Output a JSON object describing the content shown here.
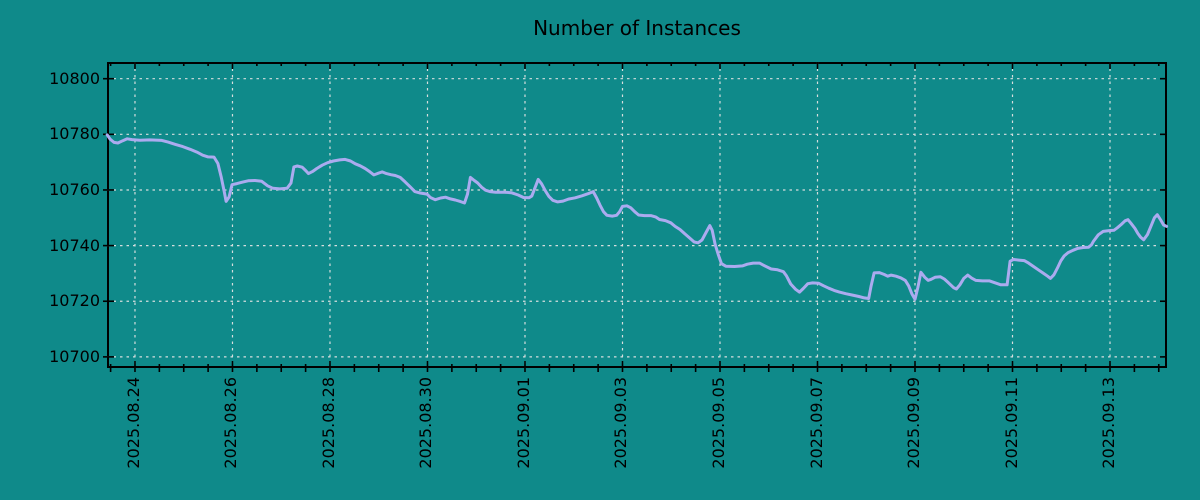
{
  "chart_data": {
    "type": "line",
    "title": "Number of Instances",
    "xlabel": "",
    "ylabel": "",
    "legend": null,
    "grid": true,
    "colors": {
      "background": "#0F8A8A",
      "line": "#ABABEF",
      "grid": "#D6DEDE",
      "axis": "#000000",
      "text": "#000000"
    },
    "ylim": [
      10696,
      10806
    ],
    "xlim_days": [
      -0.574,
      21.169
    ],
    "x_minor_step_days": 0.5,
    "y_ticks": [
      {
        "value": 10700,
        "label": "10700"
      },
      {
        "value": 10720,
        "label": "10720"
      },
      {
        "value": 10740,
        "label": "10740"
      },
      {
        "value": 10760,
        "label": "10760"
      },
      {
        "value": 10780,
        "label": "10780"
      },
      {
        "value": 10800,
        "label": "10800"
      }
    ],
    "x_ticks": [
      {
        "day": 0,
        "label": "2025.08.24"
      },
      {
        "day": 2,
        "label": "2025.08.26"
      },
      {
        "day": 4,
        "label": "2025.08.28"
      },
      {
        "day": 6,
        "label": "2025.08.30"
      },
      {
        "day": 8,
        "label": "2025.09.01"
      },
      {
        "day": 10,
        "label": "2025.09.03"
      },
      {
        "day": 12,
        "label": "2025.09.05"
      },
      {
        "day": 14,
        "label": "2025.09.07"
      },
      {
        "day": 16,
        "label": "2025.09.09"
      },
      {
        "day": 18,
        "label": "2025.09.11"
      },
      {
        "day": 20,
        "label": "2025.09.13"
      }
    ],
    "points": [
      [
        -0.57,
        10779.8
      ],
      [
        -0.51,
        10778.3
      ],
      [
        -0.43,
        10777.1
      ],
      [
        -0.35,
        10776.9
      ],
      [
        -0.25,
        10777.7
      ],
      [
        -0.16,
        10778.4
      ],
      [
        -0.06,
        10778.1
      ],
      [
        0.1,
        10777.9
      ],
      [
        0.3,
        10778.0
      ],
      [
        0.55,
        10777.8
      ],
      [
        0.68,
        10777.2
      ],
      [
        0.82,
        10776.4
      ],
      [
        0.98,
        10775.6
      ],
      [
        1.13,
        10774.6
      ],
      [
        1.27,
        10773.6
      ],
      [
        1.39,
        10772.5
      ],
      [
        1.5,
        10771.9
      ],
      [
        1.62,
        10771.8
      ],
      [
        1.7,
        10769.5
      ],
      [
        1.77,
        10764.5
      ],
      [
        1.83,
        10759.5
      ],
      [
        1.87,
        10755.9
      ],
      [
        1.93,
        10757.5
      ],
      [
        1.99,
        10761.9
      ],
      [
        2.09,
        10762.3
      ],
      [
        2.2,
        10762.8
      ],
      [
        2.32,
        10763.3
      ],
      [
        2.46,
        10763.4
      ],
      [
        2.6,
        10763.1
      ],
      [
        2.72,
        10761.5
      ],
      [
        2.83,
        10760.6
      ],
      [
        2.97,
        10760.4
      ],
      [
        3.12,
        10760.6
      ],
      [
        3.2,
        10762.5
      ],
      [
        3.26,
        10768.3
      ],
      [
        3.33,
        10768.6
      ],
      [
        3.43,
        10768.2
      ],
      [
        3.5,
        10767.0
      ],
      [
        3.56,
        10765.9
      ],
      [
        3.64,
        10766.6
      ],
      [
        3.73,
        10767.7
      ],
      [
        3.84,
        10768.9
      ],
      [
        3.95,
        10769.8
      ],
      [
        4.07,
        10770.4
      ],
      [
        4.2,
        10770.8
      ],
      [
        4.31,
        10771.0
      ],
      [
        4.42,
        10770.4
      ],
      [
        4.52,
        10769.4
      ],
      [
        4.62,
        10768.7
      ],
      [
        4.72,
        10767.7
      ],
      [
        4.82,
        10766.5
      ],
      [
        4.9,
        10765.4
      ],
      [
        4.97,
        10765.9
      ],
      [
        5.07,
        10766.5
      ],
      [
        5.16,
        10765.9
      ],
      [
        5.25,
        10765.5
      ],
      [
        5.34,
        10765.2
      ],
      [
        5.44,
        10764.5
      ],
      [
        5.54,
        10762.9
      ],
      [
        5.64,
        10761.2
      ],
      [
        5.74,
        10759.4
      ],
      [
        5.85,
        10758.9
      ],
      [
        5.99,
        10758.5
      ],
      [
        6.06,
        10757.3
      ],
      [
        6.16,
        10756.5
      ],
      [
        6.27,
        10757.1
      ],
      [
        6.37,
        10757.4
      ],
      [
        6.47,
        10756.8
      ],
      [
        6.57,
        10756.4
      ],
      [
        6.68,
        10755.8
      ],
      [
        6.76,
        10755.3
      ],
      [
        6.82,
        10758.5
      ],
      [
        6.88,
        10764.5
      ],
      [
        6.96,
        10763.4
      ],
      [
        7.03,
        10762.5
      ],
      [
        7.11,
        10761.0
      ],
      [
        7.19,
        10759.9
      ],
      [
        7.28,
        10759.4
      ],
      [
        7.4,
        10759.2
      ],
      [
        7.58,
        10759.2
      ],
      [
        7.72,
        10759.0
      ],
      [
        7.86,
        10758.2
      ],
      [
        7.97,
        10757.3
      ],
      [
        8.08,
        10757.2
      ],
      [
        8.14,
        10757.8
      ],
      [
        8.2,
        10760.5
      ],
      [
        8.27,
        10763.8
      ],
      [
        8.34,
        10762.2
      ],
      [
        8.42,
        10759.6
      ],
      [
        8.49,
        10757.7
      ],
      [
        8.57,
        10756.3
      ],
      [
        8.67,
        10755.7
      ],
      [
        8.78,
        10756.0
      ],
      [
        8.89,
        10756.7
      ],
      [
        9.03,
        10757.2
      ],
      [
        9.17,
        10757.9
      ],
      [
        9.3,
        10758.7
      ],
      [
        9.4,
        10759.4
      ],
      [
        9.47,
        10757.1
      ],
      [
        9.54,
        10754.5
      ],
      [
        9.61,
        10752.2
      ],
      [
        9.68,
        10750.9
      ],
      [
        9.79,
        10750.6
      ],
      [
        9.88,
        10750.9
      ],
      [
        9.94,
        10752.2
      ],
      [
        10.0,
        10754.1
      ],
      [
        10.09,
        10754.3
      ],
      [
        10.17,
        10753.6
      ],
      [
        10.25,
        10752.2
      ],
      [
        10.33,
        10751.0
      ],
      [
        10.45,
        10750.8
      ],
      [
        10.58,
        10750.8
      ],
      [
        10.68,
        10750.3
      ],
      [
        10.76,
        10749.4
      ],
      [
        10.88,
        10749.0
      ],
      [
        10.99,
        10748.2
      ],
      [
        11.08,
        10746.9
      ],
      [
        11.18,
        10745.8
      ],
      [
        11.28,
        10744.2
      ],
      [
        11.38,
        10742.7
      ],
      [
        11.47,
        10741.3
      ],
      [
        11.55,
        10741.0
      ],
      [
        11.63,
        10742.0
      ],
      [
        11.72,
        10744.9
      ],
      [
        11.79,
        10747.2
      ],
      [
        11.84,
        10745.5
      ],
      [
        11.9,
        10740.5
      ],
      [
        11.97,
        10736.5
      ],
      [
        12.03,
        10733.5
      ],
      [
        12.12,
        10732.6
      ],
      [
        12.3,
        10732.5
      ],
      [
        12.46,
        10732.7
      ],
      [
        12.56,
        10733.3
      ],
      [
        12.68,
        10733.7
      ],
      [
        12.81,
        10733.7
      ],
      [
        12.92,
        10732.7
      ],
      [
        13.05,
        10731.6
      ],
      [
        13.18,
        10731.3
      ],
      [
        13.3,
        10730.6
      ],
      [
        13.36,
        10729.2
      ],
      [
        13.45,
        10726.2
      ],
      [
        13.55,
        10724.3
      ],
      [
        13.63,
        10723.3
      ],
      [
        13.71,
        10724.6
      ],
      [
        13.8,
        10726.3
      ],
      [
        13.9,
        10726.6
      ],
      [
        14.02,
        10726.5
      ],
      [
        14.12,
        10725.6
      ],
      [
        14.23,
        10724.7
      ],
      [
        14.34,
        10723.9
      ],
      [
        14.45,
        10723.3
      ],
      [
        14.58,
        10722.7
      ],
      [
        14.72,
        10722.2
      ],
      [
        14.85,
        10721.7
      ],
      [
        14.96,
        10721.2
      ],
      [
        15.05,
        10721.0
      ],
      [
        15.1,
        10725.5
      ],
      [
        15.16,
        10730.2
      ],
      [
        15.27,
        10730.3
      ],
      [
        15.37,
        10729.6
      ],
      [
        15.44,
        10729.0
      ],
      [
        15.51,
        10729.4
      ],
      [
        15.61,
        10729.0
      ],
      [
        15.71,
        10728.4
      ],
      [
        15.8,
        10727.5
      ],
      [
        15.87,
        10725.5
      ],
      [
        15.94,
        10722.5
      ],
      [
        16.0,
        10720.7
      ],
      [
        16.06,
        10725.0
      ],
      [
        16.12,
        10730.4
      ],
      [
        16.2,
        10728.6
      ],
      [
        16.27,
        10727.5
      ],
      [
        16.33,
        10727.9
      ],
      [
        16.41,
        10728.6
      ],
      [
        16.52,
        10728.8
      ],
      [
        16.6,
        10728.0
      ],
      [
        16.69,
        10726.6
      ],
      [
        16.79,
        10724.9
      ],
      [
        16.85,
        10724.4
      ],
      [
        16.92,
        10725.9
      ],
      [
        17.0,
        10728.2
      ],
      [
        17.08,
        10729.4
      ],
      [
        17.16,
        10728.3
      ],
      [
        17.25,
        10727.5
      ],
      [
        17.38,
        10727.3
      ],
      [
        17.53,
        10727.3
      ],
      [
        17.65,
        10726.6
      ],
      [
        17.76,
        10725.9
      ],
      [
        17.89,
        10725.9
      ],
      [
        17.95,
        10734.4
      ],
      [
        18.02,
        10735.0
      ],
      [
        18.13,
        10734.8
      ],
      [
        18.24,
        10734.6
      ],
      [
        18.33,
        10733.7
      ],
      [
        18.43,
        10732.5
      ],
      [
        18.53,
        10731.3
      ],
      [
        18.63,
        10730.1
      ],
      [
        18.72,
        10729.0
      ],
      [
        18.78,
        10728.2
      ],
      [
        18.85,
        10729.5
      ],
      [
        18.92,
        10731.9
      ],
      [
        18.99,
        10734.5
      ],
      [
        19.06,
        10736.3
      ],
      [
        19.14,
        10737.5
      ],
      [
        19.24,
        10738.3
      ],
      [
        19.34,
        10739.0
      ],
      [
        19.45,
        10739.3
      ],
      [
        19.56,
        10739.4
      ],
      [
        19.62,
        10740.3
      ],
      [
        19.66,
        10741.5
      ],
      [
        19.76,
        10743.9
      ],
      [
        19.86,
        10745.1
      ],
      [
        19.98,
        10745.4
      ],
      [
        20.08,
        10745.5
      ],
      [
        20.15,
        10746.4
      ],
      [
        20.23,
        10747.6
      ],
      [
        20.31,
        10748.9
      ],
      [
        20.37,
        10749.3
      ],
      [
        20.43,
        10748.0
      ],
      [
        20.51,
        10746.2
      ],
      [
        20.57,
        10744.4
      ],
      [
        20.63,
        10743.0
      ],
      [
        20.69,
        10742.1
      ],
      [
        20.77,
        10744.0
      ],
      [
        20.84,
        10747.0
      ],
      [
        20.91,
        10750.0
      ],
      [
        20.97,
        10751.1
      ],
      [
        21.04,
        10749.2
      ],
      [
        21.1,
        10747.4
      ],
      [
        21.16,
        10746.9
      ]
    ]
  }
}
